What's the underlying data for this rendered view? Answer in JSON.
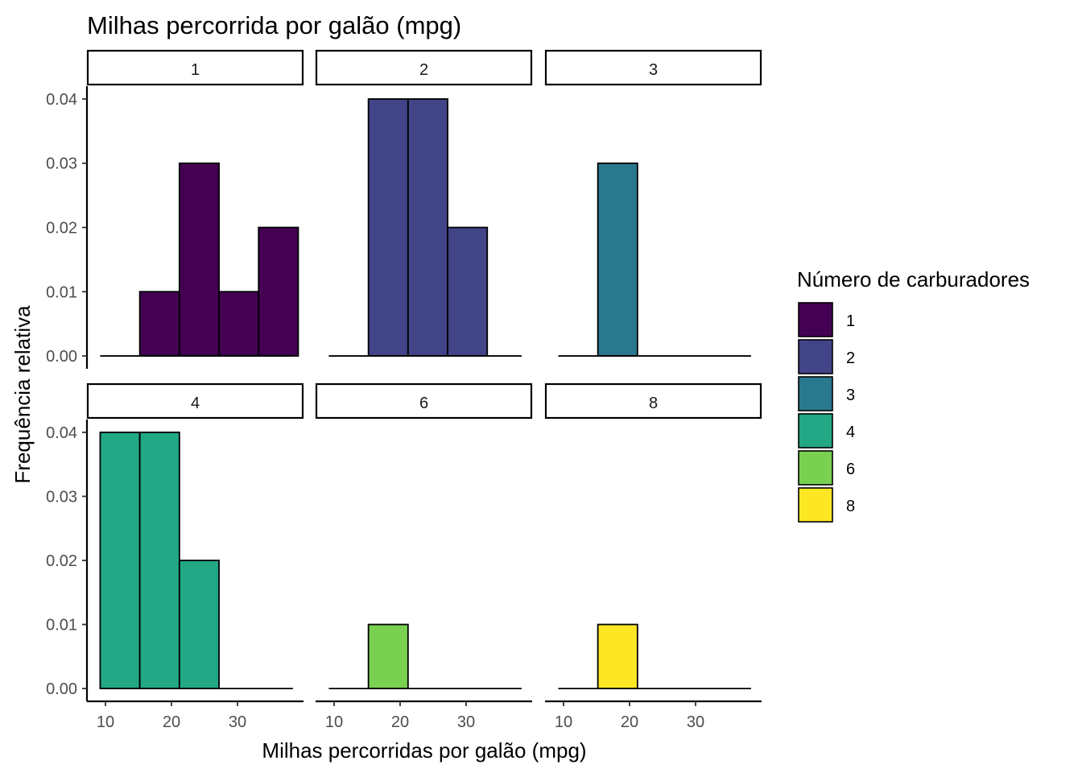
{
  "chart_data": {
    "type": "bar",
    "title": "Milhas percorrida por galão (mpg)",
    "xlabel": "Milhas percorridas por galão (mpg)",
    "ylabel": "Frequência relativa",
    "xlim": [
      7.8,
      38.4
    ],
    "ylim": [
      -0.002,
      0.042
    ],
    "x_ticks": [
      10,
      20,
      30
    ],
    "x_tick_labels": [
      "10",
      "20",
      "30"
    ],
    "y_ticks": [
      0,
      0.01,
      0.02,
      0.03,
      0.04
    ],
    "y_tick_labels": [
      "0.00",
      "0.01",
      "0.02",
      "0.03",
      "0.04"
    ],
    "bin_edges": [
      9.2,
      15.2,
      21.2,
      27.2,
      33.2,
      39.2
    ],
    "x_data_max": 38.4,
    "grid": false,
    "legend": {
      "title": "Número de carburadores",
      "position": "right",
      "items": [
        {
          "label": "1",
          "color": "#440154"
        },
        {
          "label": "2",
          "color": "#414487"
        },
        {
          "label": "3",
          "color": "#2A788E"
        },
        {
          "label": "4",
          "color": "#22A884"
        },
        {
          "label": "6",
          "color": "#7AD151"
        },
        {
          "label": "8",
          "color": "#FDE725"
        }
      ]
    },
    "facets": [
      {
        "label": "1",
        "color": "#440154",
        "values": [
          0,
          0.01,
          0.03,
          0.01,
          0.02
        ]
      },
      {
        "label": "2",
        "color": "#414487",
        "values": [
          0,
          0.04,
          0.04,
          0.02,
          0
        ]
      },
      {
        "label": "3",
        "color": "#2A788E",
        "values": [
          0,
          0.03,
          0,
          0,
          0
        ]
      },
      {
        "label": "4",
        "color": "#22A884",
        "values": [
          0.04,
          0.04,
          0.02,
          0,
          0
        ]
      },
      {
        "label": "6",
        "color": "#7AD151",
        "values": [
          0,
          0.01,
          0,
          0,
          0
        ]
      },
      {
        "label": "8",
        "color": "#FDE725",
        "values": [
          0,
          0.01,
          0,
          0,
          0
        ]
      }
    ]
  }
}
